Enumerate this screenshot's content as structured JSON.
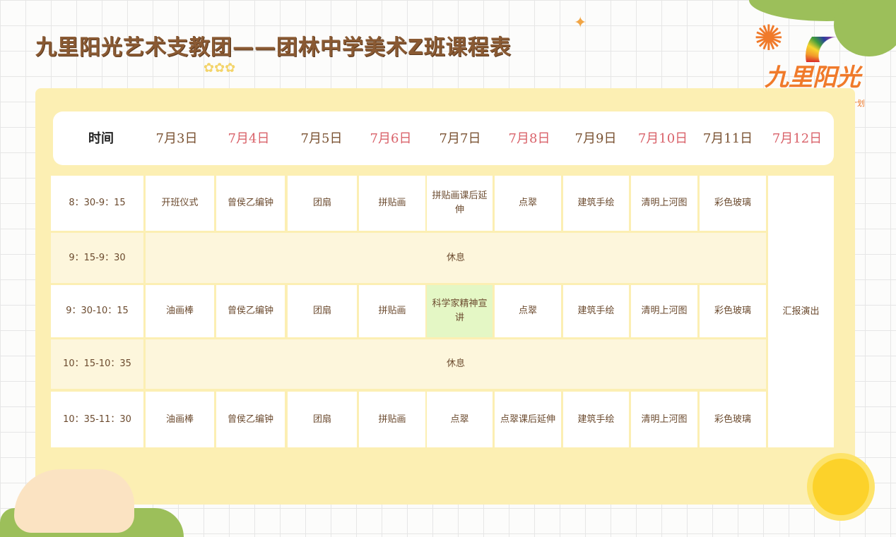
{
  "title": "九里阳光艺术支教团——团林中学美术Z班课程表",
  "logo": {
    "text": "九里阳光",
    "subtext": "计划"
  },
  "header": {
    "time_label": "时间",
    "dates": [
      "7月3日",
      "7月4日",
      "7月5日",
      "7月6日",
      "7月7日",
      "7月8日",
      "7月9日",
      "7月10日",
      "7月11日",
      "7月12日"
    ]
  },
  "colors": {
    "date_odd": "#7a5232",
    "date_even": "#d9626a",
    "board": "#fcefb3",
    "highlight": "#e4f7c5"
  },
  "rows": [
    {
      "time": "8：30-9：15",
      "cells": [
        "开班仪式",
        "曾侯乙编钟",
        "团扇",
        "拼贴画",
        "拼贴画课后延伸",
        "点翠",
        "建筑手绘",
        "清明上河图",
        "彩色玻璃"
      ]
    },
    {
      "time": "9：15-9：30",
      "rest": "休息"
    },
    {
      "time": "9：30-10：15",
      "cells": [
        "油画棒",
        "曾侯乙编钟",
        "团扇",
        "拼贴画",
        "科学家精神宣讲",
        "点翠",
        "建筑手绘",
        "清明上河图",
        "彩色玻璃"
      ]
    },
    {
      "time": "10：15-10：35",
      "rest": "休息"
    },
    {
      "time": "10：35-11：30",
      "cells": [
        "油画棒",
        "曾侯乙编钟",
        "团扇",
        "拼贴画",
        "点翠",
        "点翠课后延伸",
        "建筑手绘",
        "清明上河图",
        "彩色玻璃"
      ]
    }
  ],
  "last_day": "汇报演出"
}
